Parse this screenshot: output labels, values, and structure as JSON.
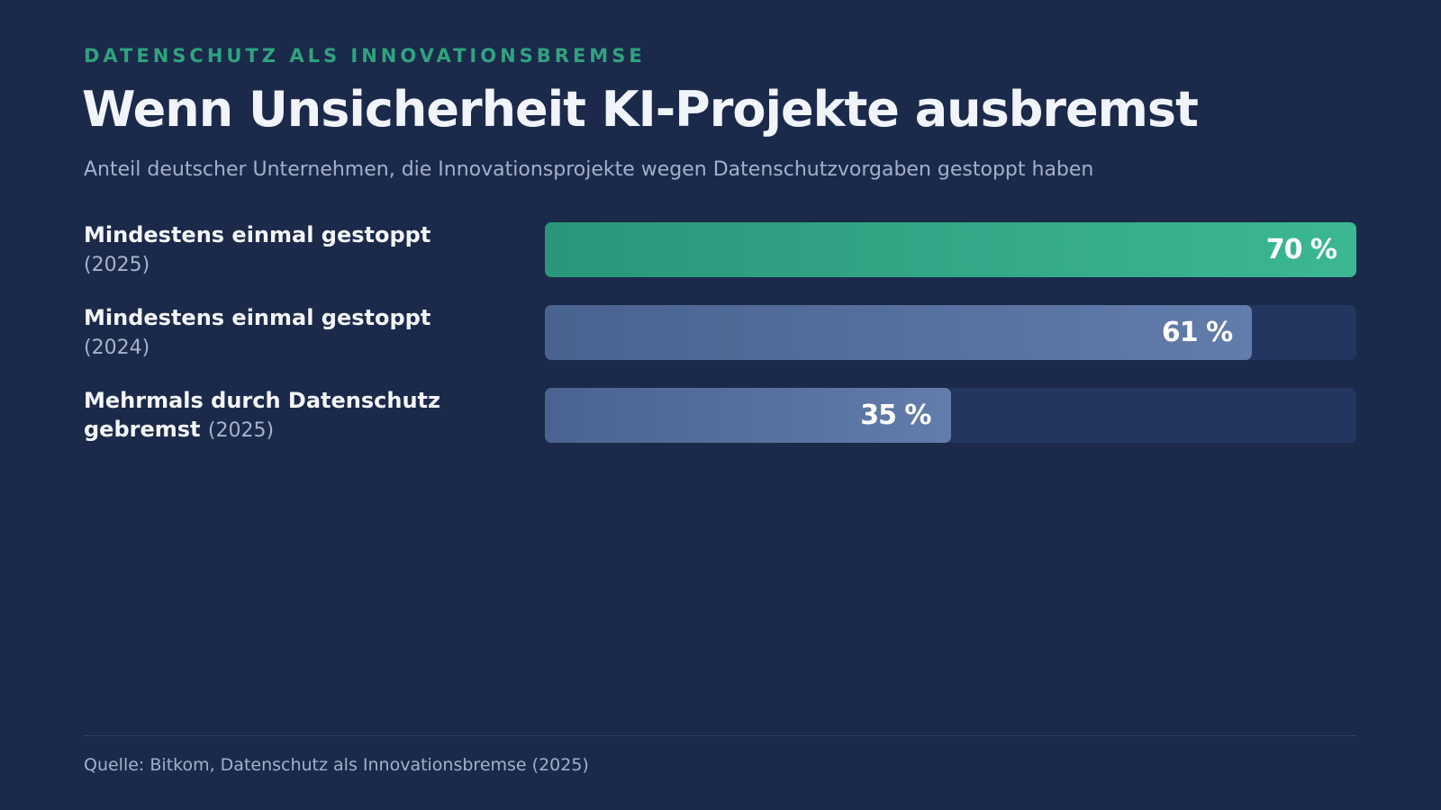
{
  "chart_data": {
    "type": "bar",
    "orientation": "horizontal",
    "eyebrow": "DATENSCHUTZ ALS INNOVATIONSBREMSE",
    "title": "Wenn Unsicherheit KI-Projekte ausbremst",
    "subtitle": "Anteil deutscher Unternehmen, die Innovationsprojekte wegen Datenschutzvorgaben gestoppt haben",
    "categories": [
      "Mindestens einmal gestoppt",
      "Mindestens einmal gestoppt",
      "Mehrmals durch Datenschutz gebremst"
    ],
    "category_years": [
      "(2025)",
      "(2024)",
      "(2025)"
    ],
    "values": [
      70,
      61,
      35
    ],
    "value_labels": [
      "70 %",
      "61 %",
      "35 %"
    ],
    "colors": [
      "#30b38c",
      "#5874a6",
      "#5874a6"
    ],
    "track_color": "#22365f",
    "xlim": [
      0,
      70
    ],
    "source": "Quelle: Bitkom, Datenschutz als Innovationsbremse (2025)"
  }
}
